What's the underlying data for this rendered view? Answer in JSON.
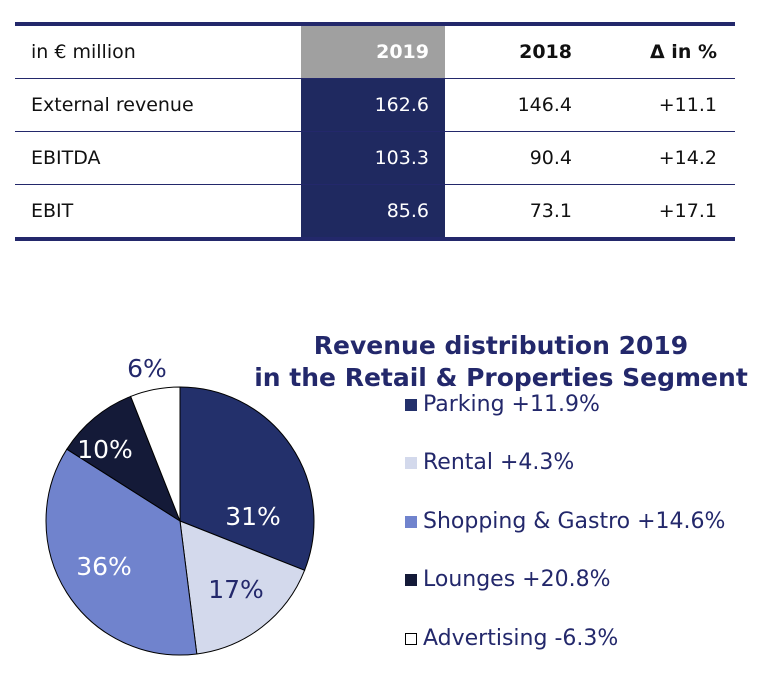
{
  "table": {
    "header": {
      "label": "in € million",
      "y2019": "2019",
      "y2018": "2018",
      "delta": "Δ in %"
    },
    "rows": [
      {
        "label": "External revenue",
        "y2019": "162.6",
        "y2018": "146.4",
        "delta": "+11.1"
      },
      {
        "label": "EBITDA",
        "y2019": "103.3",
        "y2018": "90.4",
        "delta": "+14.2"
      },
      {
        "label": "EBIT",
        "y2019": "85.6",
        "y2018": "73.1",
        "delta": "+17.1"
      }
    ]
  },
  "chart_data": {
    "type": "pie",
    "title": "Revenue distribution 2019 in the Retail & Properties Segment",
    "title_lines": [
      "Revenue distribution 2019",
      "in the Retail & Properties Segment"
    ],
    "slices": [
      {
        "name": "Parking",
        "value": 31,
        "label": "31%",
        "legend": "Parking +11.9%",
        "color": "#23306b",
        "label_color": "#ffffff"
      },
      {
        "name": "Rental",
        "value": 17,
        "label": "17%",
        "legend": "Rental +4.3%",
        "color": "#d3d9ec",
        "label_color": "#23286b"
      },
      {
        "name": "Shopping & Gastro",
        "value": 36,
        "label": "36%",
        "legend": "Shopping & Gastro +14.6%",
        "color": "#7083cd",
        "label_color": "#ffffff"
      },
      {
        "name": "Lounges",
        "value": 10,
        "label": "10%",
        "legend": "Lounges +20.8%",
        "color": "#141a38",
        "label_color": "#ffffff"
      },
      {
        "name": "Advertising",
        "value": 6,
        "label": "6%",
        "legend": "Advertising -6.3%",
        "color": "#ffffff",
        "label_color": "#23286b"
      }
    ],
    "start": "12 o'clock, clockwise",
    "legend_position": "right"
  }
}
